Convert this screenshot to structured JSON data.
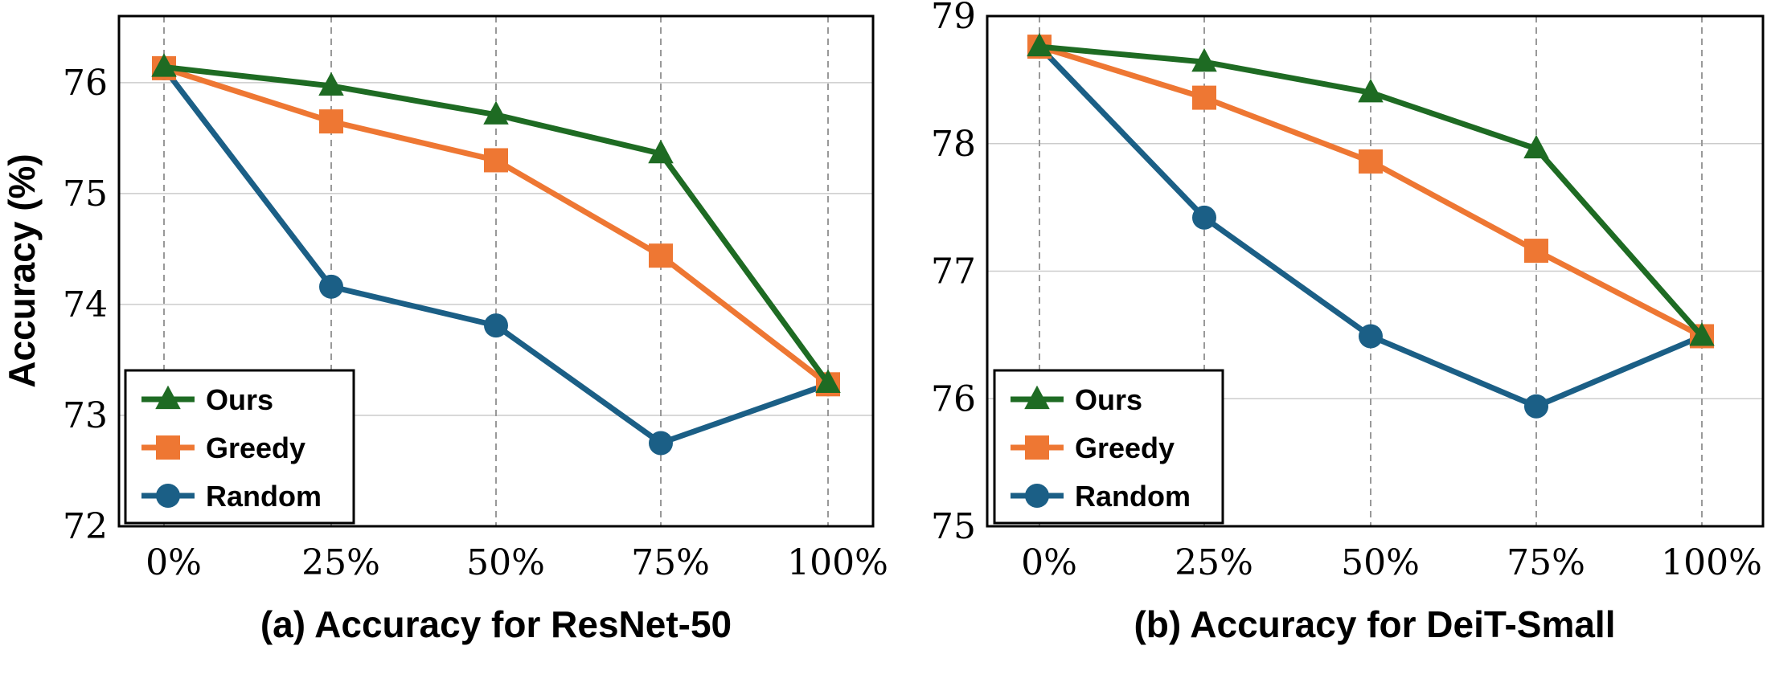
{
  "colors": {
    "ours": "#1e6b23",
    "greedy": "#ee7733",
    "random": "#1b5f86",
    "grid": "#999999",
    "frame": "#000000"
  },
  "chart_data": [
    {
      "type": "line",
      "title": "",
      "xlabel": "(a) Accuracy for ResNet-50",
      "ylabel": "Accuracy (%)",
      "categories": [
        "0%",
        "25%",
        "50%",
        "75%",
        "100%"
      ],
      "ylim": [
        72,
        76.6
      ],
      "yticks": [
        "72",
        "73",
        "74",
        "75",
        "76"
      ],
      "legend_position": "bottom-left",
      "series": [
        {
          "name": "Ours",
          "marker": "triangle",
          "values": [
            76.14,
            75.97,
            75.71,
            75.36,
            73.29
          ]
        },
        {
          "name": "Greedy",
          "marker": "square",
          "values": [
            76.13,
            75.65,
            75.3,
            74.44,
            73.28
          ]
        },
        {
          "name": "Random",
          "marker": "circle",
          "values": [
            76.13,
            74.16,
            73.81,
            72.75,
            73.28
          ]
        }
      ]
    },
    {
      "type": "line",
      "title": "",
      "xlabel": "(b) Accuracy for DeiT-Small",
      "ylabel": "",
      "categories": [
        "0%",
        "25%",
        "50%",
        "75%",
        "100%"
      ],
      "ylim": [
        75,
        79
      ],
      "yticks": [
        "75",
        "76",
        "77",
        "78",
        "79"
      ],
      "legend_position": "bottom-left",
      "series": [
        {
          "name": "Ours",
          "marker": "triangle",
          "values": [
            78.76,
            78.64,
            78.4,
            77.96,
            76.49
          ]
        },
        {
          "name": "Greedy",
          "marker": "square",
          "values": [
            78.76,
            78.36,
            77.86,
            77.16,
            76.49
          ]
        },
        {
          "name": "Random",
          "marker": "circle",
          "values": [
            78.76,
            77.42,
            76.49,
            75.94,
            76.49
          ]
        }
      ]
    }
  ]
}
